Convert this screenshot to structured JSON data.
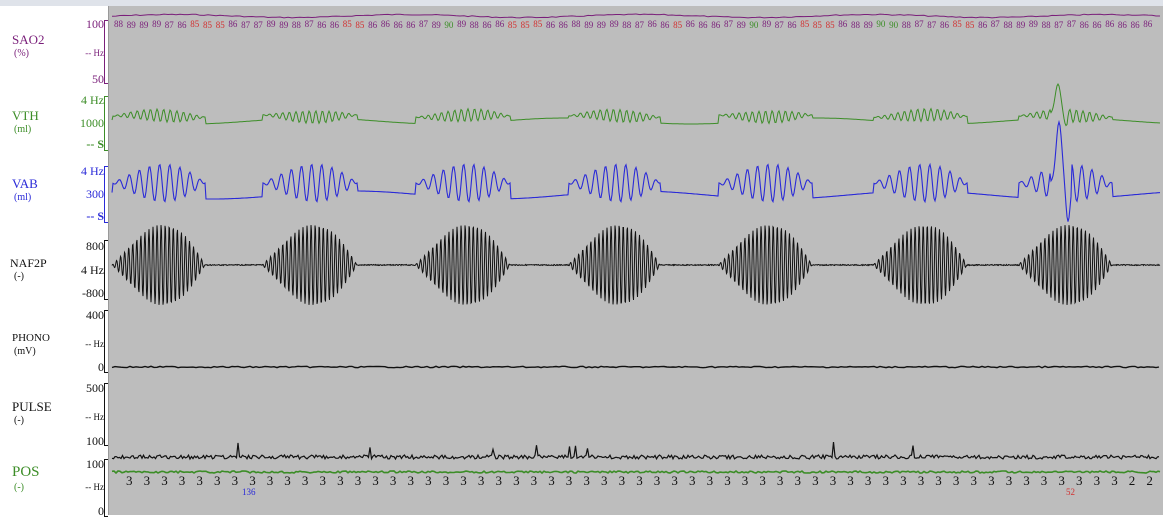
{
  "window": {
    "title": ""
  },
  "channels": [
    {
      "id": "sao2",
      "name": "SAO2",
      "unit": "(%)",
      "color": "#7a1f7a",
      "scales": {
        "top": "100",
        "mid": "-- Hz",
        "bottom": "50"
      }
    },
    {
      "id": "vth",
      "name": "VTH",
      "unit": "(ml)",
      "color": "#3c8d27",
      "scales": {
        "top": "4 Hz",
        "mid": "1000",
        "bottom": "-- S"
      }
    },
    {
      "id": "vab",
      "name": "VAB",
      "unit": "(ml)",
      "color": "#2a2ad8",
      "scales": {
        "top": "4 Hz",
        "mid": "300",
        "bottom": "-- S"
      }
    },
    {
      "id": "naf2p",
      "name": "NAF2P",
      "unit": "(-)",
      "color": "#111111",
      "scales": {
        "top": "800",
        "mid": "4 Hz",
        "bottom": "-800"
      }
    },
    {
      "id": "phono",
      "name": "PHONO",
      "unit": "(mV)",
      "color": "#111111",
      "scales": {
        "top": "400",
        "mid": "-- Hz",
        "bottom": "0"
      }
    },
    {
      "id": "pulse",
      "name": "PULSE",
      "unit": "(-)",
      "color": "#111111",
      "scales": {
        "top": "500",
        "mid": "-- Hz",
        "bottom": "100"
      }
    },
    {
      "id": "pos",
      "name": "POS",
      "unit": "(-)",
      "color": "#3c8d27",
      "scales": {
        "top": "100",
        "mid": "-- Hz",
        "bottom": "0"
      }
    }
  ],
  "sao2_readout": {
    "values": [
      "88",
      "89",
      "89",
      "89",
      "87",
      "86",
      "85",
      "85",
      "85",
      "86",
      "87",
      "87",
      "89",
      "89",
      "88",
      "87",
      "86",
      "86",
      "85",
      "85",
      "86",
      "86",
      "86",
      "86",
      "87",
      "89",
      "90",
      "89",
      "88",
      "86",
      "86",
      "85",
      "85",
      "85",
      "86",
      "86",
      "88",
      "89",
      "89",
      "89",
      "88",
      "87",
      "86",
      "86",
      "85",
      "86",
      "86",
      "86",
      "87",
      "89",
      "90",
      "89",
      "87",
      "86",
      "85",
      "85",
      "85",
      "86",
      "88",
      "89",
      "90",
      "90",
      "88",
      "87",
      "87",
      "86",
      "85",
      "85",
      "86",
      "87",
      "88",
      "89",
      "89",
      "88",
      "87",
      "87",
      "86",
      "86",
      "86",
      "86",
      "86",
      "86"
    ],
    "normal_color": "#7a1f7a",
    "desat_color": "#d23030",
    "high_color": "#3c8d27"
  },
  "pos_readout": {
    "values": [
      "3",
      "3",
      "3",
      "3",
      "3",
      "3",
      "3",
      "3",
      "3",
      "3",
      "3",
      "3",
      "3",
      "3",
      "3",
      "3",
      "3",
      "3",
      "3",
      "3",
      "3",
      "3",
      "3",
      "3",
      "3",
      "3",
      "3",
      "3",
      "3",
      "3",
      "3",
      "3",
      "3",
      "3",
      "3",
      "3",
      "3",
      "3",
      "3",
      "3",
      "3",
      "3",
      "3",
      "3",
      "3",
      "3",
      "3",
      "3",
      "3",
      "3",
      "3",
      "3",
      "3",
      "3",
      "3",
      "3",
      "3",
      "2",
      "2"
    ],
    "color": "#111111"
  },
  "markers": [
    {
      "id": "marker-136",
      "text": "136",
      "color": "#2a2ad8"
    },
    {
      "id": "marker-52",
      "text": "52",
      "color": "#d23030"
    }
  ]
}
